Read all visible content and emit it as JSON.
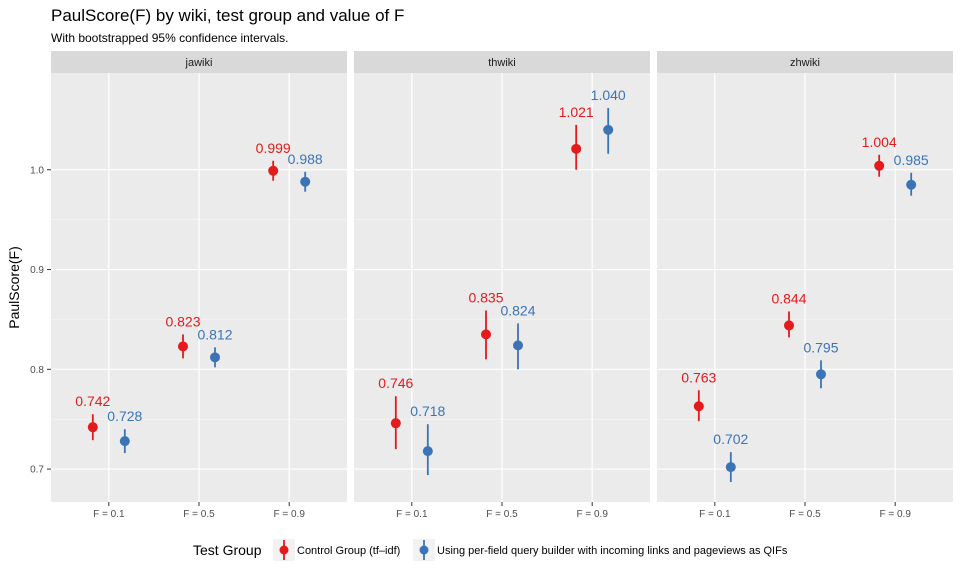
{
  "title": "PaulScore(F) by wiki, test group and value of F",
  "subtitle": "With bootstrapped 95% confidence intervals.",
  "chart_data": {
    "type": "scatter",
    "facets": [
      "jawiki",
      "thwiki",
      "zhwiki"
    ],
    "categories": [
      "F = 0.1",
      "F = 0.5",
      "F = 0.9"
    ],
    "ylabel": "PaulScore(F)",
    "ylim": [
      0.667,
      1.097
    ],
    "yticks": [
      0.7,
      0.8,
      0.9,
      1.0
    ],
    "ytick_labels": [
      "0.7",
      "0.8",
      "0.9",
      "1.0"
    ],
    "grid": true,
    "legend": {
      "title": "Test Group",
      "position": "bottom"
    },
    "series": [
      {
        "name": "Control Group (tf–idf)",
        "color": "#e41a1c",
        "values": {
          "jawiki": [
            0.742,
            0.823,
            0.999
          ],
          "thwiki": [
            0.746,
            0.835,
            1.021
          ],
          "zhwiki": [
            0.763,
            0.844,
            1.004
          ]
        },
        "ci": {
          "jawiki": [
            [
              0.729,
              0.755
            ],
            [
              0.811,
              0.835
            ],
            [
              0.989,
              1.009
            ]
          ],
          "thwiki": [
            [
              0.72,
              0.773
            ],
            [
              0.81,
              0.859
            ],
            [
              1.0,
              1.045
            ]
          ],
          "zhwiki": [
            [
              0.748,
              0.779
            ],
            [
              0.832,
              0.858
            ],
            [
              0.993,
              1.015
            ]
          ]
        },
        "labels": {
          "jawiki": [
            "0.742",
            "0.823",
            "0.999"
          ],
          "thwiki": [
            "0.746",
            "0.835",
            "1.021"
          ],
          "zhwiki": [
            "0.763",
            "0.844",
            "1.004"
          ]
        }
      },
      {
        "name": "Using per-field query builder with incoming links and pageviews as QIFs",
        "color": "#3a74b6",
        "values": {
          "jawiki": [
            0.728,
            0.812,
            0.988
          ],
          "thwiki": [
            0.718,
            0.824,
            1.04
          ],
          "zhwiki": [
            0.702,
            0.795,
            0.985
          ]
        },
        "ci": {
          "jawiki": [
            [
              0.716,
              0.74
            ],
            [
              0.802,
              0.822
            ],
            [
              0.978,
              0.998
            ]
          ],
          "thwiki": [
            [
              0.694,
              0.745
            ],
            [
              0.8,
              0.846
            ],
            [
              1.016,
              1.062
            ]
          ],
          "zhwiki": [
            [
              0.687,
              0.717
            ],
            [
              0.781,
              0.809
            ],
            [
              0.974,
              0.997
            ]
          ]
        },
        "labels": {
          "jawiki": [
            "0.728",
            "0.812",
            "0.988"
          ],
          "thwiki": [
            "0.718",
            "0.824",
            "1.040"
          ],
          "zhwiki": [
            "0.702",
            "0.795",
            "0.985"
          ]
        }
      }
    ]
  }
}
